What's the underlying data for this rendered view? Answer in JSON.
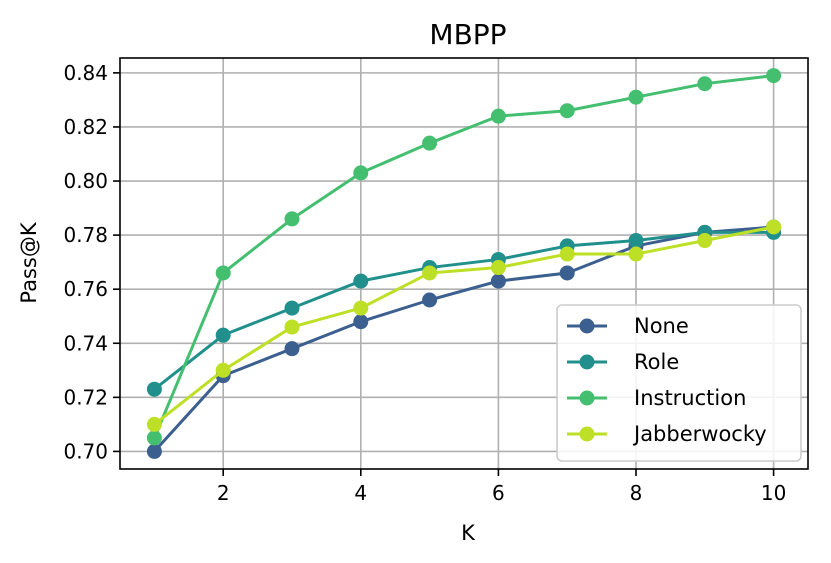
{
  "chart_data": {
    "type": "line",
    "title": "MBPP",
    "xlabel": "K",
    "ylabel": "Pass@K",
    "x": [
      1,
      2,
      3,
      4,
      5,
      6,
      7,
      8,
      9,
      10
    ],
    "xlim": [
      0.5,
      10.5
    ],
    "ylim": [
      0.6935,
      0.8455
    ],
    "xticks": [
      2,
      4,
      6,
      8,
      10
    ],
    "yticks": [
      0.7,
      0.72,
      0.74,
      0.76,
      0.78,
      0.8,
      0.82,
      0.84
    ],
    "grid": true,
    "legend_position": "lower-right",
    "series": [
      {
        "name": "None",
        "color": "#3b5f8f",
        "values": [
          0.7,
          0.728,
          0.738,
          0.748,
          0.756,
          0.763,
          0.766,
          0.776,
          0.781,
          0.783
        ]
      },
      {
        "name": "Role",
        "color": "#21908c",
        "values": [
          0.723,
          0.743,
          0.753,
          0.763,
          0.768,
          0.771,
          0.776,
          0.778,
          0.781,
          0.781
        ]
      },
      {
        "name": "Instruction",
        "color": "#44bf70",
        "values": [
          0.705,
          0.766,
          0.786,
          0.803,
          0.814,
          0.824,
          0.826,
          0.831,
          0.836,
          0.839
        ]
      },
      {
        "name": "Jabberwocky",
        "color": "#bddf26",
        "values": [
          0.71,
          0.73,
          0.746,
          0.753,
          0.766,
          0.768,
          0.773,
          0.773,
          0.778,
          0.783
        ]
      }
    ]
  }
}
